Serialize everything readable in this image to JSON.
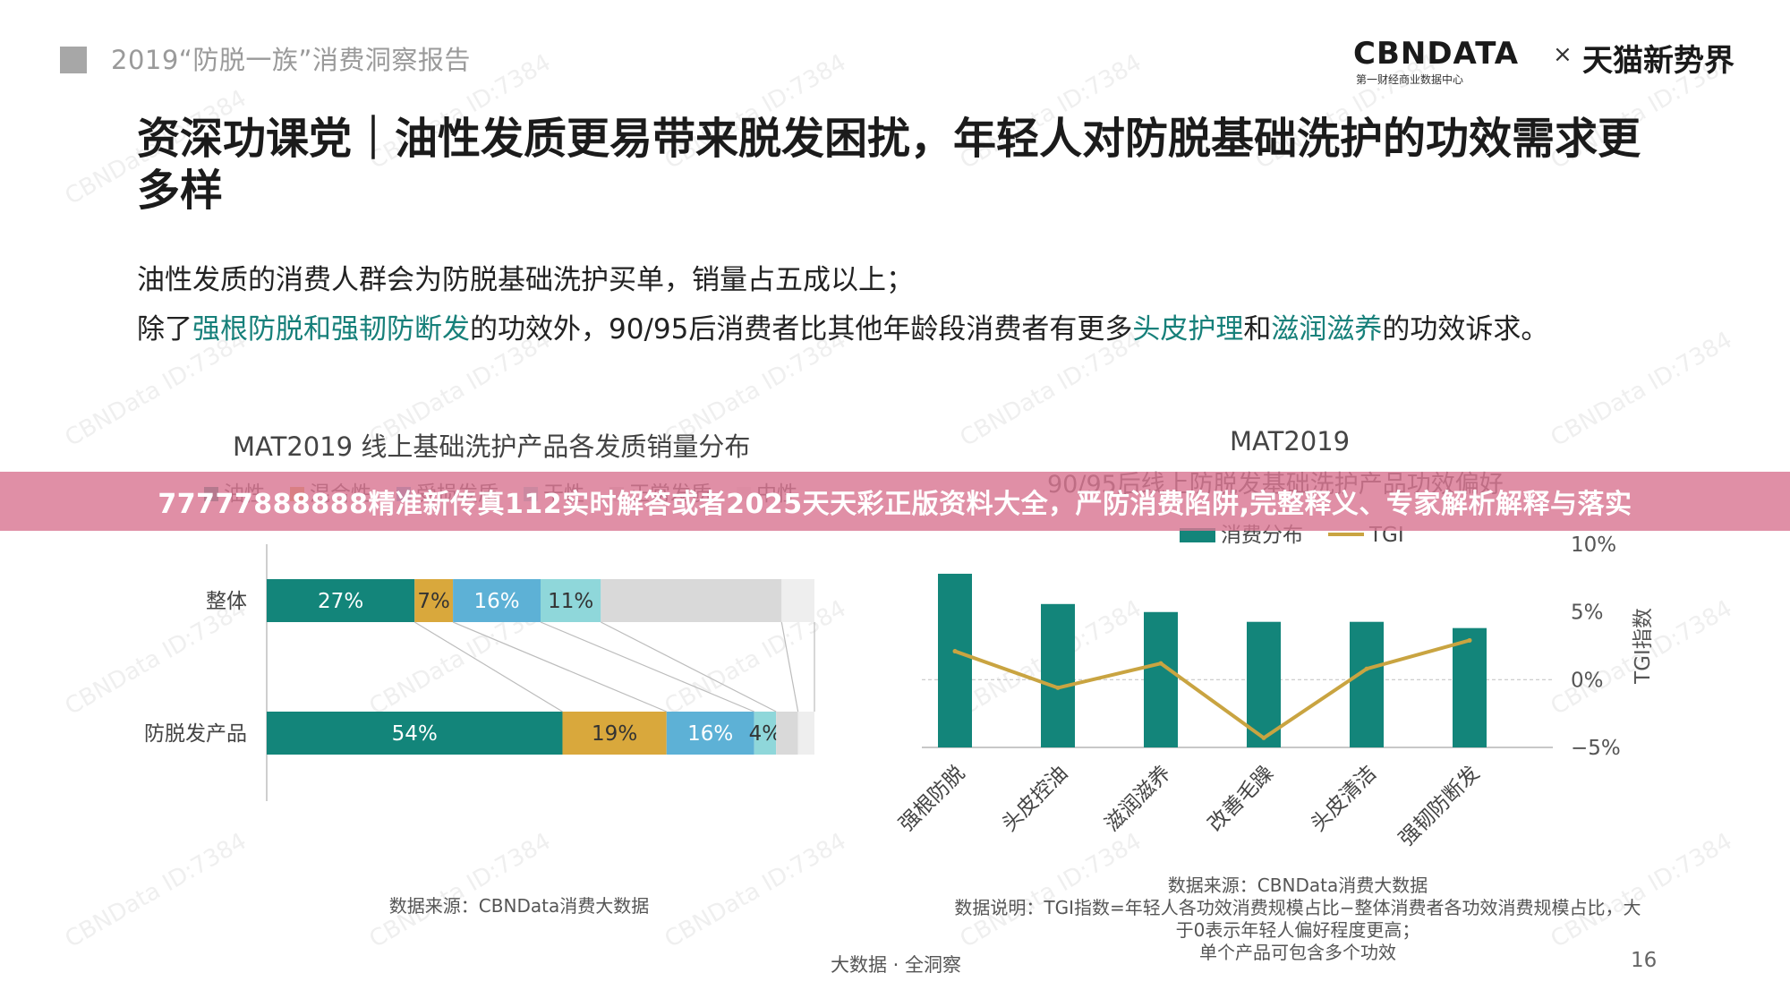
{
  "header": {
    "report_title": "2019“防脱一族”消费洞察报告",
    "logo_left": "CBNDATA",
    "logo_sub": "第一财经商业数据中心",
    "logo_times": "×",
    "logo_right": "天猫新势界"
  },
  "title": "资深功课党｜油性发质更易带来脱发困扰，年轻人对防脱基础洗护的功效需求更多样",
  "description": {
    "line1": "油性发质的消费人群会为防脱基础洗护买单，销量占五成以上；",
    "line2_p1": "除了",
    "line2_hl1": "强根防脱和强韧防断发",
    "line2_p2": "的功效外，90/95后消费者比其他年龄段消费者有更多",
    "line2_hl2": "头皮护理",
    "line2_p3": "和",
    "line2_hl3": "滋润滋养",
    "line2_p4": "的功效诉求。"
  },
  "watermark": "CBNData ID:7384",
  "banner": "77777888888精准新传真112实时解答或者2025天天彩正版资料大全，严防消费陷阱,完整释义、专家解析解释与落实",
  "colors": {
    "teal": "#13857a",
    "gold": "#d9a83c",
    "blue": "#5db1d6",
    "cyan": "#8fd7da",
    "light_gray": "#d9d9d9",
    "pale_gray": "#eeeeee",
    "tgi_line": "#c9a441"
  },
  "chart_data": [
    {
      "type": "bar",
      "orientation": "horizontal-stacked-percent",
      "title": "MAT2019 线上基础洗护产品各发质销量分布",
      "legend_position": "top",
      "legend": [
        "油性",
        "混合性",
        "受损发质",
        "干性",
        "正常发质",
        "中性"
      ],
      "categories": [
        "整体",
        "防脱发产品"
      ],
      "series": [
        {
          "name": "油性",
          "values": [
            27,
            54
          ],
          "labels": [
            "27%",
            "54%"
          ]
        },
        {
          "name": "混合性",
          "values": [
            7,
            19
          ],
          "labels": [
            "7%",
            "19%"
          ]
        },
        {
          "name": "受损发质",
          "values": [
            16,
            16
          ],
          "labels": [
            "16%",
            "16%"
          ]
        },
        {
          "name": "干性",
          "values": [
            11,
            4
          ],
          "labels": [
            "11%",
            "4%"
          ]
        },
        {
          "name": "正常发质",
          "values": [
            33,
            4
          ],
          "labels": [
            "",
            ""
          ]
        },
        {
          "name": "中性",
          "values": [
            6,
            3
          ],
          "labels": [
            "",
            ""
          ]
        }
      ],
      "xlim": [
        0,
        100
      ],
      "source": "数据来源：CBNData消费大数据"
    },
    {
      "type": "bar",
      "combo_with": "line",
      "title": "MAT2019",
      "subtitle": "90/95后线上防脱发基础洗护产品功效偏好",
      "legend_position": "top",
      "legend": [
        "消费分布",
        "TGI"
      ],
      "categories": [
        "强根防脱",
        "头皮控油",
        "滋润滋养",
        "改善毛躁",
        "头皮清洁",
        "强韧防断发"
      ],
      "bar_values": [
        19.5,
        16.1,
        15.2,
        14.1,
        14.1,
        13.4
      ],
      "tgi_values": [
        2.1,
        -0.6,
        1.2,
        -4.3,
        0.8,
        2.9
      ],
      "right_axis_label": "TGI指数",
      "right_axis_ticks": [
        "10%",
        "5%",
        "0%",
        "−5%"
      ],
      "right_ylim": [
        -5,
        10
      ],
      "notes": [
        "数据来源：CBNData消费大数据",
        "数据说明：TGI指数=年轻人各功效消费规模占比−整体消费者各功效消费规模占比，大",
        "于0表示年轻人偏好程度更高；",
        "单个产品可包含多个功效"
      ]
    }
  ],
  "footer": "大数据 · 全洞察",
  "page_number": "16"
}
